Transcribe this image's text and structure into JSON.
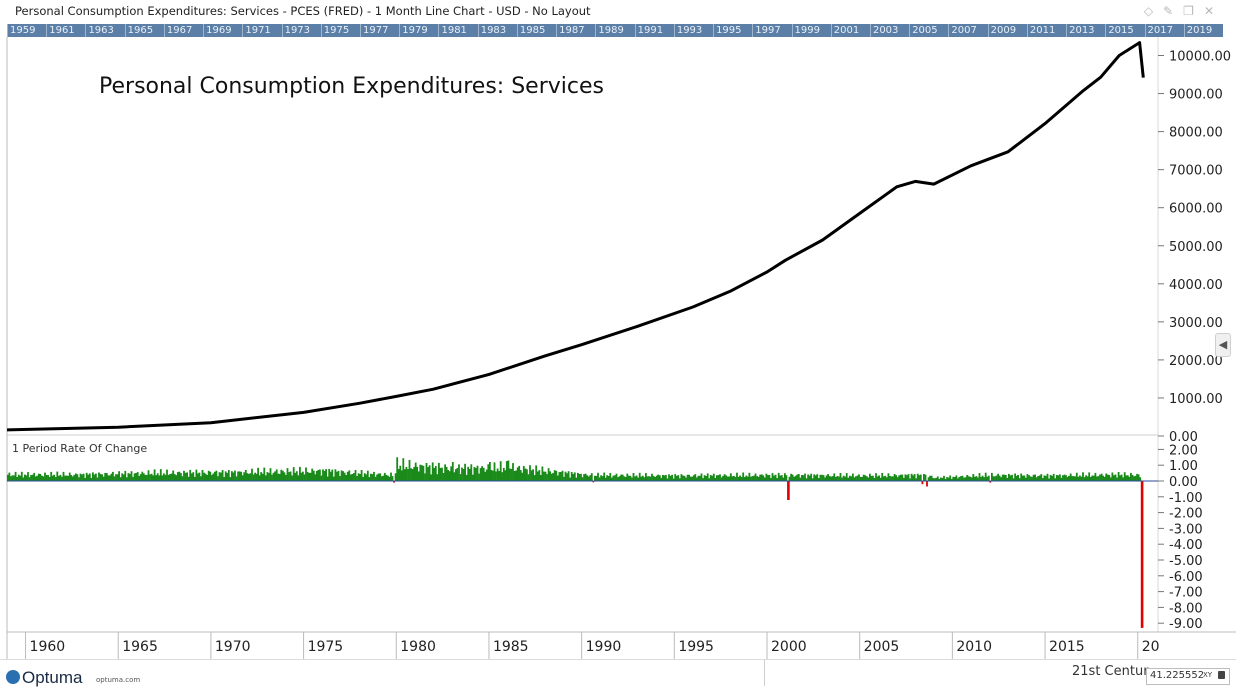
{
  "window": {
    "title": "Personal Consumption Expenditures: Services - PCES (FRED) - 1 Month Line Chart - USD - No Layout"
  },
  "icons": [
    "diamond-icon",
    "pin-icon",
    "restore-icon",
    "close-icon"
  ],
  "year_strip": [
    "1959",
    "1961",
    "1963",
    "1965",
    "1967",
    "1969",
    "1971",
    "1973",
    "1975",
    "1977",
    "1979",
    "1981",
    "1983",
    "1985",
    "1987",
    "1989",
    "1991",
    "1993",
    "1995",
    "1997",
    "1999",
    "2001",
    "2003",
    "2005",
    "2007",
    "2009",
    "2011",
    "2013",
    "2015",
    "2017",
    "2019"
  ],
  "colors": {
    "price_line": "#000000",
    "roc_positive": "#1a8a1a",
    "roc_negative": "#e00000",
    "year_strip_bg": "#5b7fa6",
    "axis_text": "#222222"
  },
  "chart_data": [
    {
      "type": "line",
      "title": "Personal Consumption Expenditures: Services",
      "ylim": [
        0,
        10400
      ],
      "y_ticks": [
        "10000.00",
        "9000.00",
        "8000.00",
        "7000.00",
        "6000.00",
        "5000.00",
        "4000.00",
        "3000.00",
        "2000.00",
        "1000.00",
        "0.00"
      ],
      "x_ticks": [
        "1960",
        "1965",
        "1970",
        "1975",
        "1980",
        "1985",
        "1990",
        "1995",
        "2000",
        "2005",
        "2010",
        "2015",
        "20"
      ],
      "grid": false,
      "series": [
        {
          "x": [
            1959,
            1965,
            1970,
            1975,
            1978,
            1980,
            1982,
            1985,
            1988,
            1990,
            1993,
            1996,
            1998,
            2000,
            2001,
            2003,
            2005,
            2007,
            2008,
            2009,
            2011,
            2013,
            2015,
            2017,
            2018,
            2019,
            2020.1,
            2020.3
          ],
          "values": [
            160,
            230,
            350,
            620,
            860,
            1040,
            1230,
            1620,
            2100,
            2400,
            2880,
            3390,
            3800,
            4310,
            4620,
            5150,
            5850,
            6550,
            6690,
            6620,
            7100,
            7470,
            8210,
            9050,
            9430,
            10000,
            10340,
            9420
          ]
        }
      ]
    },
    {
      "type": "bar",
      "title": "1 Period Rate Of Change",
      "ylim": [
        -9.5,
        2.6
      ],
      "y_ticks": [
        "2.00",
        "1.00",
        "0.00",
        "-1.00",
        "-2.00",
        "-3.00",
        "-4.00",
        "-5.00",
        "-6.00",
        "-7.00",
        "-8.00",
        "-9.00"
      ],
      "series": [
        {
          "note_positive_typical": [
            0.2,
            0.95
          ],
          "x": [
            1959,
            1963,
            1967,
            1971,
            1974,
            1976,
            1979.8,
            1980,
            1983,
            1985,
            1986,
            1990,
            1990.6,
            1995,
            2000,
            2001.1,
            2005,
            2008.3,
            2008.6,
            2009,
            2012,
            2015,
            2019,
            2020.2
          ],
          "values": [
            0.6,
            0.6,
            0.75,
            0.8,
            0.9,
            0.95,
            -0.1,
            1.5,
            1.2,
            1.2,
            1.3,
            0.6,
            -0.08,
            0.5,
            0.55,
            -1.2,
            0.5,
            -0.2,
            -0.35,
            0.3,
            -0.1,
            0.5,
            0.6,
            -9.3
          ]
        }
      ]
    }
  ],
  "footer": {
    "brand": "Optuma",
    "url": "optuma.com",
    "century_label": "21st Centur",
    "coord_value": "41.225552",
    "xy_label": "XY"
  }
}
